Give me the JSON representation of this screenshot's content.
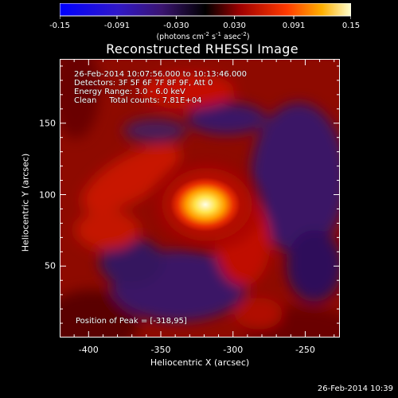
{
  "chart_data": {
    "type": "heatmap",
    "title": "Reconstructed RHESSI Image",
    "xlabel": "Heliocentric X (arcsec)",
    "ylabel": "Heliocentric Y (arcsec)",
    "xlim": [
      -420,
      -226
    ],
    "ylim": [
      0,
      195
    ],
    "xticks": [
      "-400",
      "-350",
      "-300",
      "-250"
    ],
    "xtick_values": [
      -400,
      -350,
      -300,
      -250
    ],
    "yticks": [
      "50",
      "100",
      "150"
    ],
    "ytick_values": [
      50,
      100,
      150
    ],
    "colorbar": {
      "min": -0.15,
      "max": 0.15,
      "tick_labels": [
        "-0.15",
        "-0.091",
        "-0.030",
        "0.030",
        "0.091",
        "0.15"
      ],
      "tick_values": [
        -0.15,
        -0.091,
        -0.03,
        0.03,
        0.091,
        0.15
      ],
      "units_parts": [
        "(photons cm",
        "-2",
        " s",
        "-1",
        " asec",
        "-2",
        ")"
      ]
    },
    "peak": {
      "x": -318,
      "y": 95
    },
    "annotation_lines": [
      "26-Feb-2014 10:07:56.000 to 10:13:46.000",
      "Detectors: 3F 5F 6F 7F 8F 9F, Att 0",
      "Energy Range: 3.0 - 6.0 keV",
      "Clean     Total counts: 7.81E+04"
    ],
    "peak_label": "Position of Peak = [-318,95]",
    "timestamp": "26-Feb-2014 10:39"
  }
}
